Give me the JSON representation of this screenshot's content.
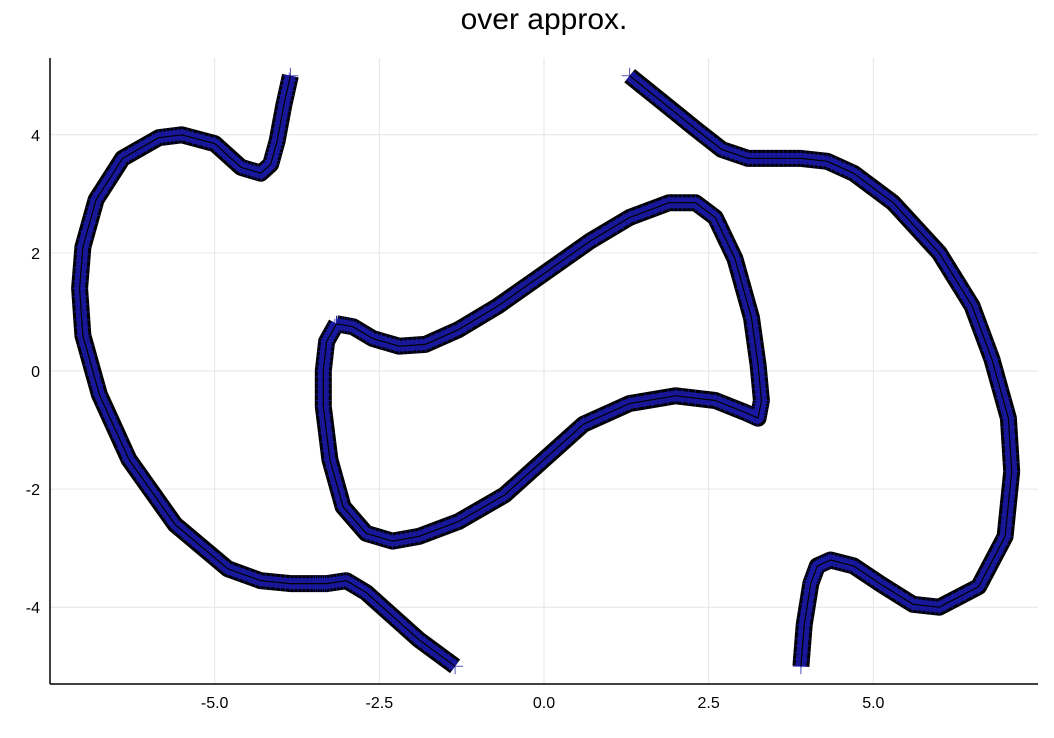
{
  "chart_data": {
    "type": "line",
    "title": "over approx.",
    "xlabel": "",
    "ylabel": "",
    "xlim": [
      -7.5,
      7.5
    ],
    "ylim": [
      -5.3,
      5.3
    ],
    "grid": true,
    "legend": "none",
    "x_ticks": [
      {
        "value": -5.0,
        "label": "-5.0"
      },
      {
        "value": -2.5,
        "label": "-2.5"
      },
      {
        "value": 0.0,
        "label": "0.0"
      },
      {
        "value": 2.5,
        "label": "2.5"
      },
      {
        "value": 5.0,
        "label": "5.0"
      }
    ],
    "y_ticks": [
      {
        "value": 4,
        "label": "4"
      },
      {
        "value": 2,
        "label": "2"
      },
      {
        "value": 0,
        "label": "0"
      },
      {
        "value": -2,
        "label": "-2"
      },
      {
        "value": -4,
        "label": "-4"
      }
    ],
    "colors": {
      "boxes": "#000000",
      "markers": "#1a1aa6",
      "grid": "#e6e6e6",
      "axis": "#000000"
    },
    "series": [
      {
        "x": [
          -3.85,
          -3.95,
          -4.05,
          -4.15,
          -4.3,
          -4.6,
          -5.0,
          -5.5,
          -5.85,
          -6.4,
          -6.8,
          -7.0,
          -7.05,
          -7.0,
          -6.75,
          -6.3,
          -5.6,
          -4.8,
          -4.3,
          -3.85,
          -3.5,
          -3.3,
          -3.0,
          -2.7,
          -2.3,
          -1.9,
          -1.35
        ],
        "y": [
          5.0,
          4.5,
          3.9,
          3.5,
          3.35,
          3.45,
          3.85,
          4.0,
          3.95,
          3.6,
          2.9,
          2.1,
          1.4,
          0.6,
          -0.4,
          -1.5,
          -2.6,
          -3.35,
          -3.55,
          -3.6,
          -3.6,
          -3.6,
          -3.55,
          -3.75,
          -4.15,
          -4.55,
          -5.0
        ]
      },
      {
        "x": [
          1.3,
          1.8,
          2.3,
          2.7,
          3.1,
          3.5,
          3.9,
          4.3,
          4.7,
          5.3,
          6.0,
          6.5,
          6.8,
          7.05,
          7.1,
          7.0,
          6.6,
          6.0,
          5.6,
          5.1,
          4.7,
          4.35,
          4.15,
          4.05,
          3.95,
          3.9
        ],
        "y": [
          5.0,
          4.55,
          4.1,
          3.75,
          3.6,
          3.6,
          3.6,
          3.55,
          3.35,
          2.85,
          2.0,
          1.1,
          0.2,
          -0.8,
          -1.7,
          -2.8,
          -3.65,
          -4.0,
          -3.95,
          -3.6,
          -3.3,
          -3.2,
          -3.3,
          -3.6,
          -4.3,
          -5.0
        ]
      },
      {
        "x": [
          -3.15,
          -2.9,
          -2.6,
          -2.2,
          -1.8,
          -1.3,
          -0.7,
          0.0,
          0.7,
          1.3,
          1.9,
          2.3,
          2.6,
          2.9,
          3.15,
          3.25,
          3.3,
          3.25,
          3.05,
          2.6,
          2.0,
          1.3,
          0.6,
          0.0,
          -0.6,
          -1.3,
          -1.9,
          -2.3,
          -2.7,
          -3.05,
          -3.25,
          -3.35,
          -3.35,
          -3.3,
          -3.15
        ],
        "y": [
          0.8,
          0.75,
          0.55,
          0.42,
          0.45,
          0.7,
          1.1,
          1.65,
          2.2,
          2.6,
          2.85,
          2.85,
          2.6,
          1.9,
          0.9,
          0.1,
          -0.5,
          -0.8,
          -0.7,
          -0.5,
          -0.42,
          -0.55,
          -0.9,
          -1.5,
          -2.1,
          -2.55,
          -2.8,
          -2.88,
          -2.75,
          -2.3,
          -1.5,
          -0.6,
          0.0,
          0.5,
          0.8
        ]
      }
    ]
  }
}
